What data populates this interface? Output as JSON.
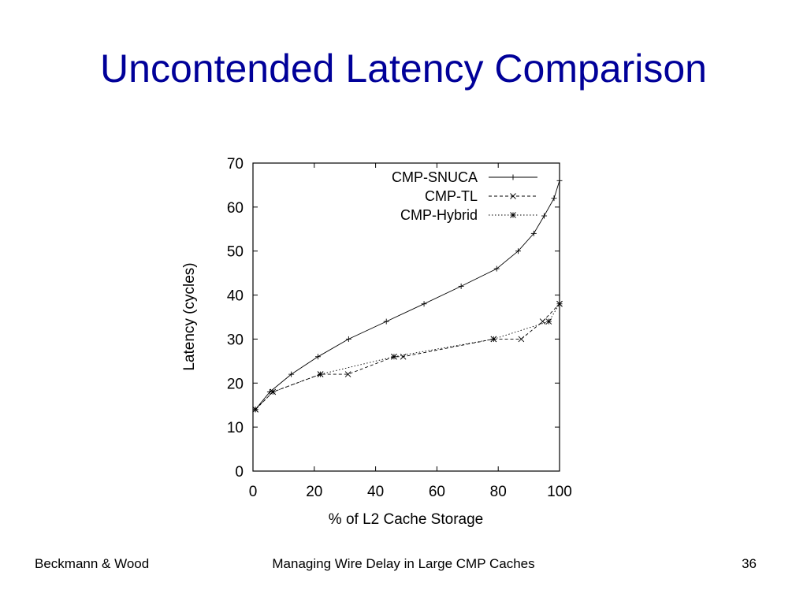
{
  "slide": {
    "title": "Uncontended Latency Comparison",
    "footer_left": "Beckmann & Wood",
    "footer_center": "Managing Wire Delay in Large CMP Caches",
    "footer_right": "36"
  },
  "chart_data": {
    "type": "line",
    "title": "",
    "xlabel": "% of L2 Cache Storage",
    "ylabel": "Latency (cycles)",
    "xlim": [
      0,
      100
    ],
    "ylim": [
      0,
      70
    ],
    "xticks": [
      0,
      20,
      40,
      60,
      80,
      100
    ],
    "yticks": [
      0,
      10,
      20,
      30,
      40,
      50,
      60,
      70
    ],
    "grid": false,
    "legend_position": "top-right",
    "series": [
      {
        "name": "CMP-SNUCA",
        "marker": "+",
        "dash": "solid",
        "color": "#000000",
        "x": [
          0.8,
          5.5,
          12.5,
          21.2,
          31.2,
          43.5,
          55.8,
          67.9,
          79.5,
          86.5,
          91.6,
          95,
          98.2,
          100
        ],
        "y": [
          14,
          18,
          22,
          26,
          30,
          34,
          38,
          42,
          46,
          50,
          54,
          58,
          62,
          66
        ]
      },
      {
        "name": "CMP-TL",
        "marker": "x",
        "dash": "dashed",
        "color": "#000000",
        "x": [
          0.8,
          6.5,
          22,
          31,
          46,
          49,
          78.5,
          87.5,
          94.5,
          100
        ],
        "y": [
          14,
          18,
          22,
          22,
          26,
          26,
          30,
          30,
          34,
          38
        ]
      },
      {
        "name": "CMP-Hybrid",
        "marker": "*",
        "dash": "dotted",
        "color": "#000000",
        "x": [
          0.8,
          6.5,
          22,
          46,
          78.5,
          96.5,
          100
        ],
        "y": [
          14,
          18,
          22,
          26,
          30,
          34,
          38
        ]
      }
    ]
  }
}
